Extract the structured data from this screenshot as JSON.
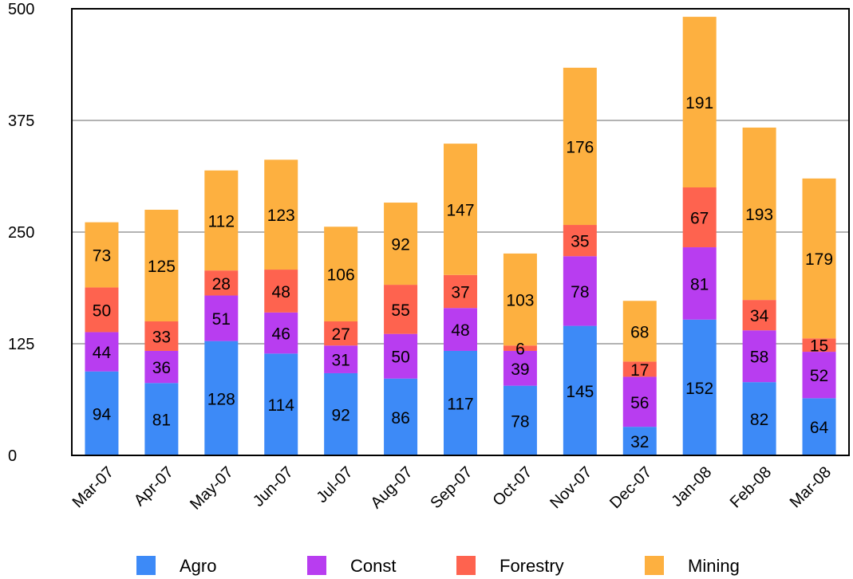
{
  "chart_data": {
    "type": "bar",
    "stacked": true,
    "categories": [
      "Mar-07",
      "Apr-07",
      "May-07",
      "Jun-07",
      "Jul-07",
      "Aug-07",
      "Sep-07",
      "Oct-07",
      "Nov-07",
      "Dec-07",
      "Jan-08",
      "Feb-08",
      "Mar-08"
    ],
    "series": [
      {
        "name": "Agro",
        "color": "#3d8af7",
        "values": [
          94,
          81,
          128,
          114,
          92,
          86,
          117,
          78,
          145,
          32,
          152,
          82,
          64
        ]
      },
      {
        "name": "Const",
        "color": "#b83df0",
        "values": [
          44,
          36,
          51,
          46,
          31,
          50,
          48,
          39,
          78,
          56,
          81,
          58,
          52
        ]
      },
      {
        "name": "Forestry",
        "color": "#fe634f",
        "values": [
          50,
          33,
          28,
          48,
          27,
          55,
          37,
          6,
          35,
          17,
          67,
          34,
          15
        ]
      },
      {
        "name": "Mining",
        "color": "#fdb040",
        "values": [
          73,
          125,
          112,
          123,
          106,
          92,
          147,
          103,
          176,
          68,
          191,
          193,
          179
        ]
      }
    ],
    "ylim": [
      0,
      500
    ],
    "yticks": [
      0,
      125,
      250,
      375,
      500
    ],
    "grid": true,
    "legend_position": "bottom",
    "xlabel": "",
    "ylabel": "",
    "title": ""
  }
}
